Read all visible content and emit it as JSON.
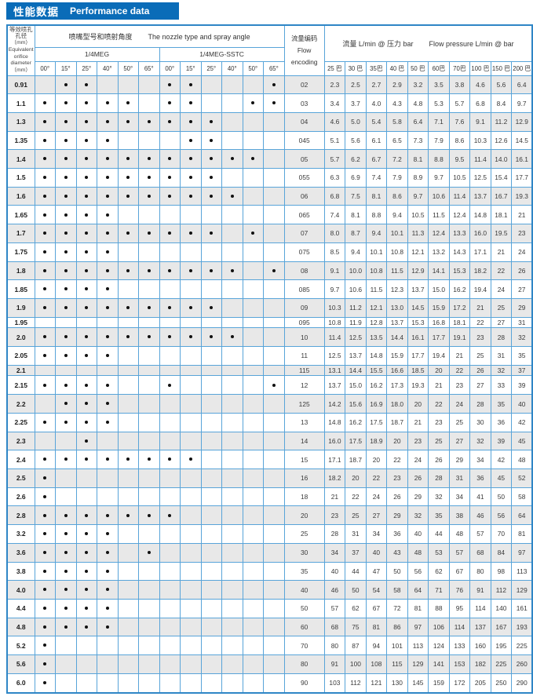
{
  "title": {
    "zh": "性能数据",
    "en": "Performance data"
  },
  "colors": {
    "accent_blue": "#0a6cb8",
    "border_blue": "#58a4d9",
    "row_shade_gray": "#e8e8e8",
    "text_dark": "#333333"
  },
  "header": {
    "orifice_lines": [
      "等效喷孔",
      "孔径",
      "（mm）",
      "Equivalent",
      "orifice",
      "diameter",
      "（mm）"
    ],
    "nozzle_group": {
      "zh": "喷嘴型号和喷射角度",
      "en": "The nozzle type and spray angle"
    },
    "meg_label": "1/4MEG",
    "sstc_label": "1/4MEG-SSTC",
    "angles": [
      "00°",
      "15°",
      "25°",
      "40°",
      "50°",
      "65°"
    ],
    "flow_encoding": {
      "zh": "流量编码",
      "en": "Flow encoding"
    },
    "flow_group": {
      "zh": "流量 L/min @ 压力 bar",
      "en": "Flow pressure L/min @ bar"
    },
    "pressures": [
      "25 巴",
      "30 巴",
      "35巴",
      "40 巴",
      "50 巴",
      "60巴",
      "70巴",
      "100 巴",
      "150 巴",
      "200 巴"
    ]
  },
  "rows": [
    {
      "d": "0.91",
      "meg": [
        0,
        1,
        1,
        0,
        0,
        0
      ],
      "sstc": [
        1,
        1,
        0,
        0,
        0,
        1
      ],
      "code": "02",
      "v": [
        "2.3",
        "2.5",
        "2.7",
        "2.9",
        "3.2",
        "3.5",
        "3.8",
        "4.6",
        "5.6",
        "6.4"
      ]
    },
    {
      "d": "1.1",
      "meg": [
        1,
        1,
        1,
        1,
        1,
        0
      ],
      "sstc": [
        1,
        1,
        0,
        0,
        1,
        1
      ],
      "code": "03",
      "v": [
        "3.4",
        "3.7",
        "4.0",
        "4.3",
        "4.8",
        "5.3",
        "5.7",
        "6.8",
        "8.4",
        "9.7"
      ]
    },
    {
      "d": "1.3",
      "meg": [
        1,
        1,
        1,
        1,
        1,
        1
      ],
      "sstc": [
        1,
        1,
        1,
        0,
        0,
        0
      ],
      "code": "04",
      "v": [
        "4.6",
        "5.0",
        "5.4",
        "5.8",
        "6.4",
        "7.1",
        "7.6",
        "9.1",
        "11.2",
        "12.9"
      ]
    },
    {
      "d": "1.35",
      "meg": [
        1,
        1,
        1,
        1,
        0,
        0
      ],
      "sstc": [
        0,
        1,
        1,
        0,
        0,
        0
      ],
      "code": "045",
      "v": [
        "5.1",
        "5.6",
        "6.1",
        "6.5",
        "7.3",
        "7.9",
        "8.6",
        "10.3",
        "12.6",
        "14.5"
      ]
    },
    {
      "d": "1.4",
      "meg": [
        1,
        1,
        1,
        1,
        1,
        1
      ],
      "sstc": [
        1,
        1,
        1,
        1,
        1,
        0
      ],
      "code": "05",
      "v": [
        "5.7",
        "6.2",
        "6.7",
        "7.2",
        "8.1",
        "8.8",
        "9.5",
        "11.4",
        "14.0",
        "16.1"
      ]
    },
    {
      "d": "1.5",
      "meg": [
        1,
        1,
        1,
        1,
        1,
        1
      ],
      "sstc": [
        1,
        1,
        1,
        0,
        0,
        0
      ],
      "code": "055",
      "v": [
        "6.3",
        "6.9",
        "7.4",
        "7.9",
        "8.9",
        "9.7",
        "10.5",
        "12.5",
        "15.4",
        "17.7"
      ]
    },
    {
      "d": "1.6",
      "meg": [
        1,
        1,
        1,
        1,
        1,
        1
      ],
      "sstc": [
        1,
        1,
        1,
        1,
        0,
        0
      ],
      "code": "06",
      "v": [
        "6.8",
        "7.5",
        "8.1",
        "8.6",
        "9.7",
        "10.6",
        "11.4",
        "13.7",
        "16.7",
        "19.3"
      ]
    },
    {
      "d": "1.65",
      "meg": [
        1,
        1,
        1,
        1,
        0,
        0
      ],
      "sstc": [
        0,
        0,
        0,
        0,
        0,
        0
      ],
      "code": "065",
      "v": [
        "7.4",
        "8.1",
        "8.8",
        "9.4",
        "10.5",
        "11.5",
        "12.4",
        "14.8",
        "18.1",
        "21"
      ]
    },
    {
      "d": "1.7",
      "meg": [
        1,
        1,
        1,
        1,
        1,
        1
      ],
      "sstc": [
        1,
        1,
        1,
        0,
        1,
        0
      ],
      "code": "07",
      "v": [
        "8.0",
        "8.7",
        "9.4",
        "10.1",
        "11.3",
        "12.4",
        "13.3",
        "16.0",
        "19.5",
        "23"
      ]
    },
    {
      "d": "1.75",
      "meg": [
        1,
        1,
        1,
        1,
        0,
        0
      ],
      "sstc": [
        0,
        0,
        0,
        0,
        0,
        0
      ],
      "code": "075",
      "v": [
        "8.5",
        "9.4",
        "10.1",
        "10.8",
        "12.1",
        "13.2",
        "14.3",
        "17.1",
        "21",
        "24"
      ]
    },
    {
      "d": "1.8",
      "meg": [
        1,
        1,
        1,
        1,
        1,
        1
      ],
      "sstc": [
        1,
        1,
        1,
        1,
        0,
        1
      ],
      "code": "08",
      "v": [
        "9.1",
        "10.0",
        "10.8",
        "11.5",
        "12.9",
        "14.1",
        "15.3",
        "18.2",
        "22",
        "26"
      ]
    },
    {
      "d": "1.85",
      "meg": [
        1,
        1,
        1,
        1,
        0,
        0
      ],
      "sstc": [
        0,
        0,
        0,
        0,
        0,
        0
      ],
      "code": "085",
      "v": [
        "9.7",
        "10.6",
        "11.5",
        "12.3",
        "13.7",
        "15.0",
        "16.2",
        "19.4",
        "24",
        "27"
      ]
    },
    {
      "d": "1.9",
      "meg": [
        1,
        1,
        1,
        1,
        1,
        1
      ],
      "sstc": [
        1,
        1,
        1,
        0,
        0,
        0
      ],
      "code": "09",
      "v": [
        "10.3",
        "11.2",
        "12.1",
        "13.0",
        "14.5",
        "15.9",
        "17.2",
        "21",
        "25",
        "29"
      ]
    },
    {
      "d": "1.95",
      "meg": [
        0,
        0,
        0,
        0,
        0,
        0
      ],
      "sstc": [
        0,
        0,
        0,
        0,
        0,
        0
      ],
      "code": "095",
      "v": [
        "10.8",
        "11.9",
        "12.8",
        "13.7",
        "15.3",
        "16.8",
        "18.1",
        "22",
        "27",
        "31"
      ]
    },
    {
      "d": "2.0",
      "meg": [
        1,
        1,
        1,
        1,
        1,
        1
      ],
      "sstc": [
        1,
        1,
        1,
        1,
        0,
        0
      ],
      "code": "10",
      "v": [
        "11.4",
        "12.5",
        "13.5",
        "14.4",
        "16.1",
        "17.7",
        "19.1",
        "23",
        "28",
        "32"
      ]
    },
    {
      "d": "2.05",
      "meg": [
        1,
        1,
        1,
        1,
        0,
        0
      ],
      "sstc": [
        0,
        0,
        0,
        0,
        0,
        0
      ],
      "code": "11",
      "v": [
        "12.5",
        "13.7",
        "14.8",
        "15.9",
        "17.7",
        "19.4",
        "21",
        "25",
        "31",
        "35"
      ]
    },
    {
      "d": "2.1",
      "meg": [
        0,
        0,
        0,
        0,
        0,
        0
      ],
      "sstc": [
        0,
        0,
        0,
        0,
        0,
        0
      ],
      "code": "115",
      "v": [
        "13.1",
        "14.4",
        "15.5",
        "16.6",
        "18.5",
        "20",
        "22",
        "26",
        "32",
        "37"
      ]
    },
    {
      "d": "2.15",
      "meg": [
        1,
        1,
        1,
        1,
        0,
        0
      ],
      "sstc": [
        1,
        0,
        0,
        0,
        0,
        1
      ],
      "code": "12",
      "v": [
        "13.7",
        "15.0",
        "16.2",
        "17.3",
        "19.3",
        "21",
        "23",
        "27",
        "33",
        "39"
      ]
    },
    {
      "d": "2.2",
      "meg": [
        0,
        1,
        1,
        1,
        0,
        0
      ],
      "sstc": [
        0,
        0,
        0,
        0,
        0,
        0
      ],
      "code": "125",
      "v": [
        "14.2",
        "15.6",
        "16.9",
        "18.0",
        "20",
        "22",
        "24",
        "28",
        "35",
        "40"
      ]
    },
    {
      "d": "2.25",
      "meg": [
        1,
        1,
        1,
        1,
        0,
        0
      ],
      "sstc": [
        0,
        0,
        0,
        0,
        0,
        0
      ],
      "code": "13",
      "v": [
        "14.8",
        "16.2",
        "17.5",
        "18.7",
        "21",
        "23",
        "25",
        "30",
        "36",
        "42"
      ]
    },
    {
      "d": "2.3",
      "meg": [
        0,
        0,
        1,
        0,
        0,
        0
      ],
      "sstc": [
        0,
        0,
        0,
        0,
        0,
        0
      ],
      "code": "14",
      "v": [
        "16.0",
        "17.5",
        "18.9",
        "20",
        "23",
        "25",
        "27",
        "32",
        "39",
        "45"
      ]
    },
    {
      "d": "2.4",
      "meg": [
        1,
        1,
        1,
        1,
        1,
        1
      ],
      "sstc": [
        1,
        1,
        0,
        0,
        0,
        0
      ],
      "code": "15",
      "v": [
        "17.1",
        "18.7",
        "20",
        "22",
        "24",
        "26",
        "29",
        "34",
        "42",
        "48"
      ]
    },
    {
      "d": "2.5",
      "meg": [
        1,
        0,
        0,
        0,
        0,
        0
      ],
      "sstc": [
        0,
        0,
        0,
        0,
        0,
        0
      ],
      "code": "16",
      "v": [
        "18.2",
        "20",
        "22",
        "23",
        "26",
        "28",
        "31",
        "36",
        "45",
        "52"
      ]
    },
    {
      "d": "2.6",
      "meg": [
        1,
        0,
        0,
        0,
        0,
        0
      ],
      "sstc": [
        0,
        0,
        0,
        0,
        0,
        0
      ],
      "code": "18",
      "v": [
        "21",
        "22",
        "24",
        "26",
        "29",
        "32",
        "34",
        "41",
        "50",
        "58"
      ]
    },
    {
      "d": "2.8",
      "meg": [
        1,
        1,
        1,
        1,
        1,
        1
      ],
      "sstc": [
        1,
        0,
        0,
        0,
        0,
        0
      ],
      "code": "20",
      "v": [
        "23",
        "25",
        "27",
        "29",
        "32",
        "35",
        "38",
        "46",
        "56",
        "64"
      ]
    },
    {
      "d": "3.2",
      "meg": [
        1,
        1,
        1,
        1,
        0,
        0
      ],
      "sstc": [
        0,
        0,
        0,
        0,
        0,
        0
      ],
      "code": "25",
      "v": [
        "28",
        "31",
        "34",
        "36",
        "40",
        "44",
        "48",
        "57",
        "70",
        "81"
      ]
    },
    {
      "d": "3.6",
      "meg": [
        1,
        1,
        1,
        1,
        0,
        1
      ],
      "sstc": [
        0,
        0,
        0,
        0,
        0,
        0
      ],
      "code": "30",
      "v": [
        "34",
        "37",
        "40",
        "43",
        "48",
        "53",
        "57",
        "68",
        "84",
        "97"
      ]
    },
    {
      "d": "3.8",
      "meg": [
        1,
        1,
        1,
        1,
        0,
        0
      ],
      "sstc": [
        0,
        0,
        0,
        0,
        0,
        0
      ],
      "code": "35",
      "v": [
        "40",
        "44",
        "47",
        "50",
        "56",
        "62",
        "67",
        "80",
        "98",
        "113"
      ]
    },
    {
      "d": "4.0",
      "meg": [
        1,
        1,
        1,
        1,
        0,
        0
      ],
      "sstc": [
        0,
        0,
        0,
        0,
        0,
        0
      ],
      "code": "40",
      "v": [
        "46",
        "50",
        "54",
        "58",
        "64",
        "71",
        "76",
        "91",
        "112",
        "129"
      ]
    },
    {
      "d": "4.4",
      "meg": [
        1,
        1,
        1,
        1,
        0,
        0
      ],
      "sstc": [
        0,
        0,
        0,
        0,
        0,
        0
      ],
      "code": "50",
      "v": [
        "57",
        "62",
        "67",
        "72",
        "81",
        "88",
        "95",
        "114",
        "140",
        "161"
      ]
    },
    {
      "d": "4.8",
      "meg": [
        1,
        1,
        1,
        1,
        0,
        0
      ],
      "sstc": [
        0,
        0,
        0,
        0,
        0,
        0
      ],
      "code": "60",
      "v": [
        "68",
        "75",
        "81",
        "86",
        "97",
        "106",
        "114",
        "137",
        "167",
        "193"
      ]
    },
    {
      "d": "5.2",
      "meg": [
        1,
        0,
        0,
        0,
        0,
        0
      ],
      "sstc": [
        0,
        0,
        0,
        0,
        0,
        0
      ],
      "code": "70",
      "v": [
        "80",
        "87",
        "94",
        "101",
        "113",
        "124",
        "133",
        "160",
        "195",
        "225"
      ]
    },
    {
      "d": "5.6",
      "meg": [
        1,
        0,
        0,
        0,
        0,
        0
      ],
      "sstc": [
        0,
        0,
        0,
        0,
        0,
        0
      ],
      "code": "80",
      "v": [
        "91",
        "100",
        "108",
        "115",
        "129",
        "141",
        "153",
        "182",
        "225",
        "260"
      ]
    },
    {
      "d": "6.0",
      "meg": [
        1,
        0,
        0,
        0,
        0,
        0
      ],
      "sstc": [
        0,
        0,
        0,
        0,
        0,
        0
      ],
      "code": "90",
      "v": [
        "103",
        "112",
        "121",
        "130",
        "145",
        "159",
        "172",
        "205",
        "250",
        "290"
      ]
    }
  ]
}
